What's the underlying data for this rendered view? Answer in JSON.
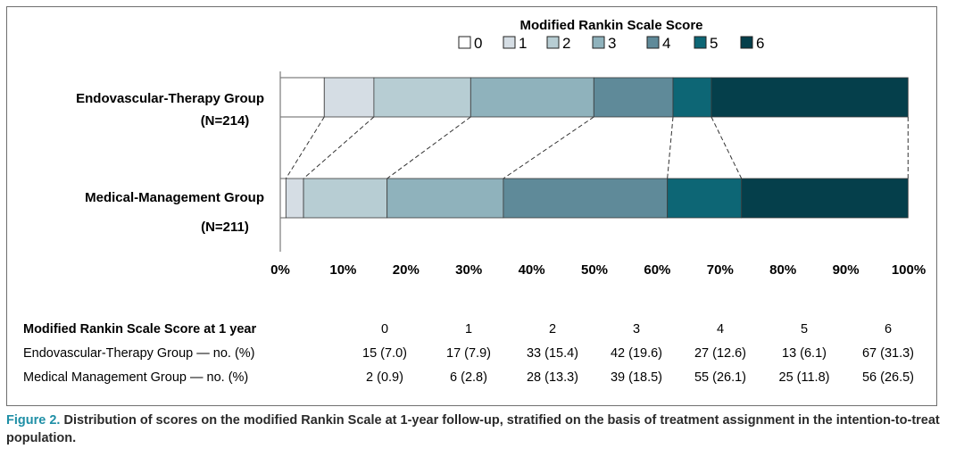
{
  "chart_data": {
    "type": "bar",
    "orientation": "horizontal",
    "stacked": true,
    "normalized": true,
    "legend": {
      "title": "Modified Rankin Scale Score",
      "placement": "top",
      "entries": [
        "0",
        "1",
        "2",
        "3",
        "4",
        "5",
        "6"
      ]
    },
    "colors": [
      "#ffffff",
      "#d5dde4",
      "#b7cdd3",
      "#8fb2bc",
      "#5f8a99",
      "#0d6675",
      "#053f4b"
    ],
    "groups": [
      {
        "name": "Endovascular-Therapy Group",
        "n_label": "(N=214)",
        "percents": [
          7.0,
          7.9,
          15.4,
          19.6,
          12.6,
          6.1,
          31.3
        ]
      },
      {
        "name": "Medical-Management Group",
        "n_label": "(N=211)",
        "percents": [
          0.9,
          2.8,
          13.3,
          18.5,
          26.1,
          11.8,
          26.5
        ]
      }
    ],
    "xticks": [
      "0%",
      "10%",
      "20%",
      "30%",
      "40%",
      "50%",
      "60%",
      "70%",
      "80%",
      "90%",
      "100%"
    ],
    "xlim": [
      0,
      100
    ]
  },
  "table": {
    "header_label": "Modified Rankin Scale Score at 1 year",
    "scores": [
      "0",
      "1",
      "2",
      "3",
      "4",
      "5",
      "6"
    ],
    "rows": [
      {
        "label": "Endovascular-Therapy Group — no. (%)",
        "values": [
          "15 (7.0)",
          "17 (7.9)",
          "33 (15.4)",
          "42 (19.6)",
          "27 (12.6)",
          "13 (6.1)",
          "67 (31.3)"
        ]
      },
      {
        "label": "Medical Management Group — no. (%)",
        "values": [
          "2 (0.9)",
          "6 (2.8)",
          "28 (13.3)",
          "39 (18.5)",
          "55 (26.1)",
          "25 (11.8)",
          "56 (26.5)"
        ]
      }
    ]
  },
  "caption": {
    "figure_label": "Figure 2.",
    "text": "Distribution of scores on the modified Rankin Scale at 1-year follow-up, stratified on the basis of treatment assignment in the intention-to-treat population."
  }
}
